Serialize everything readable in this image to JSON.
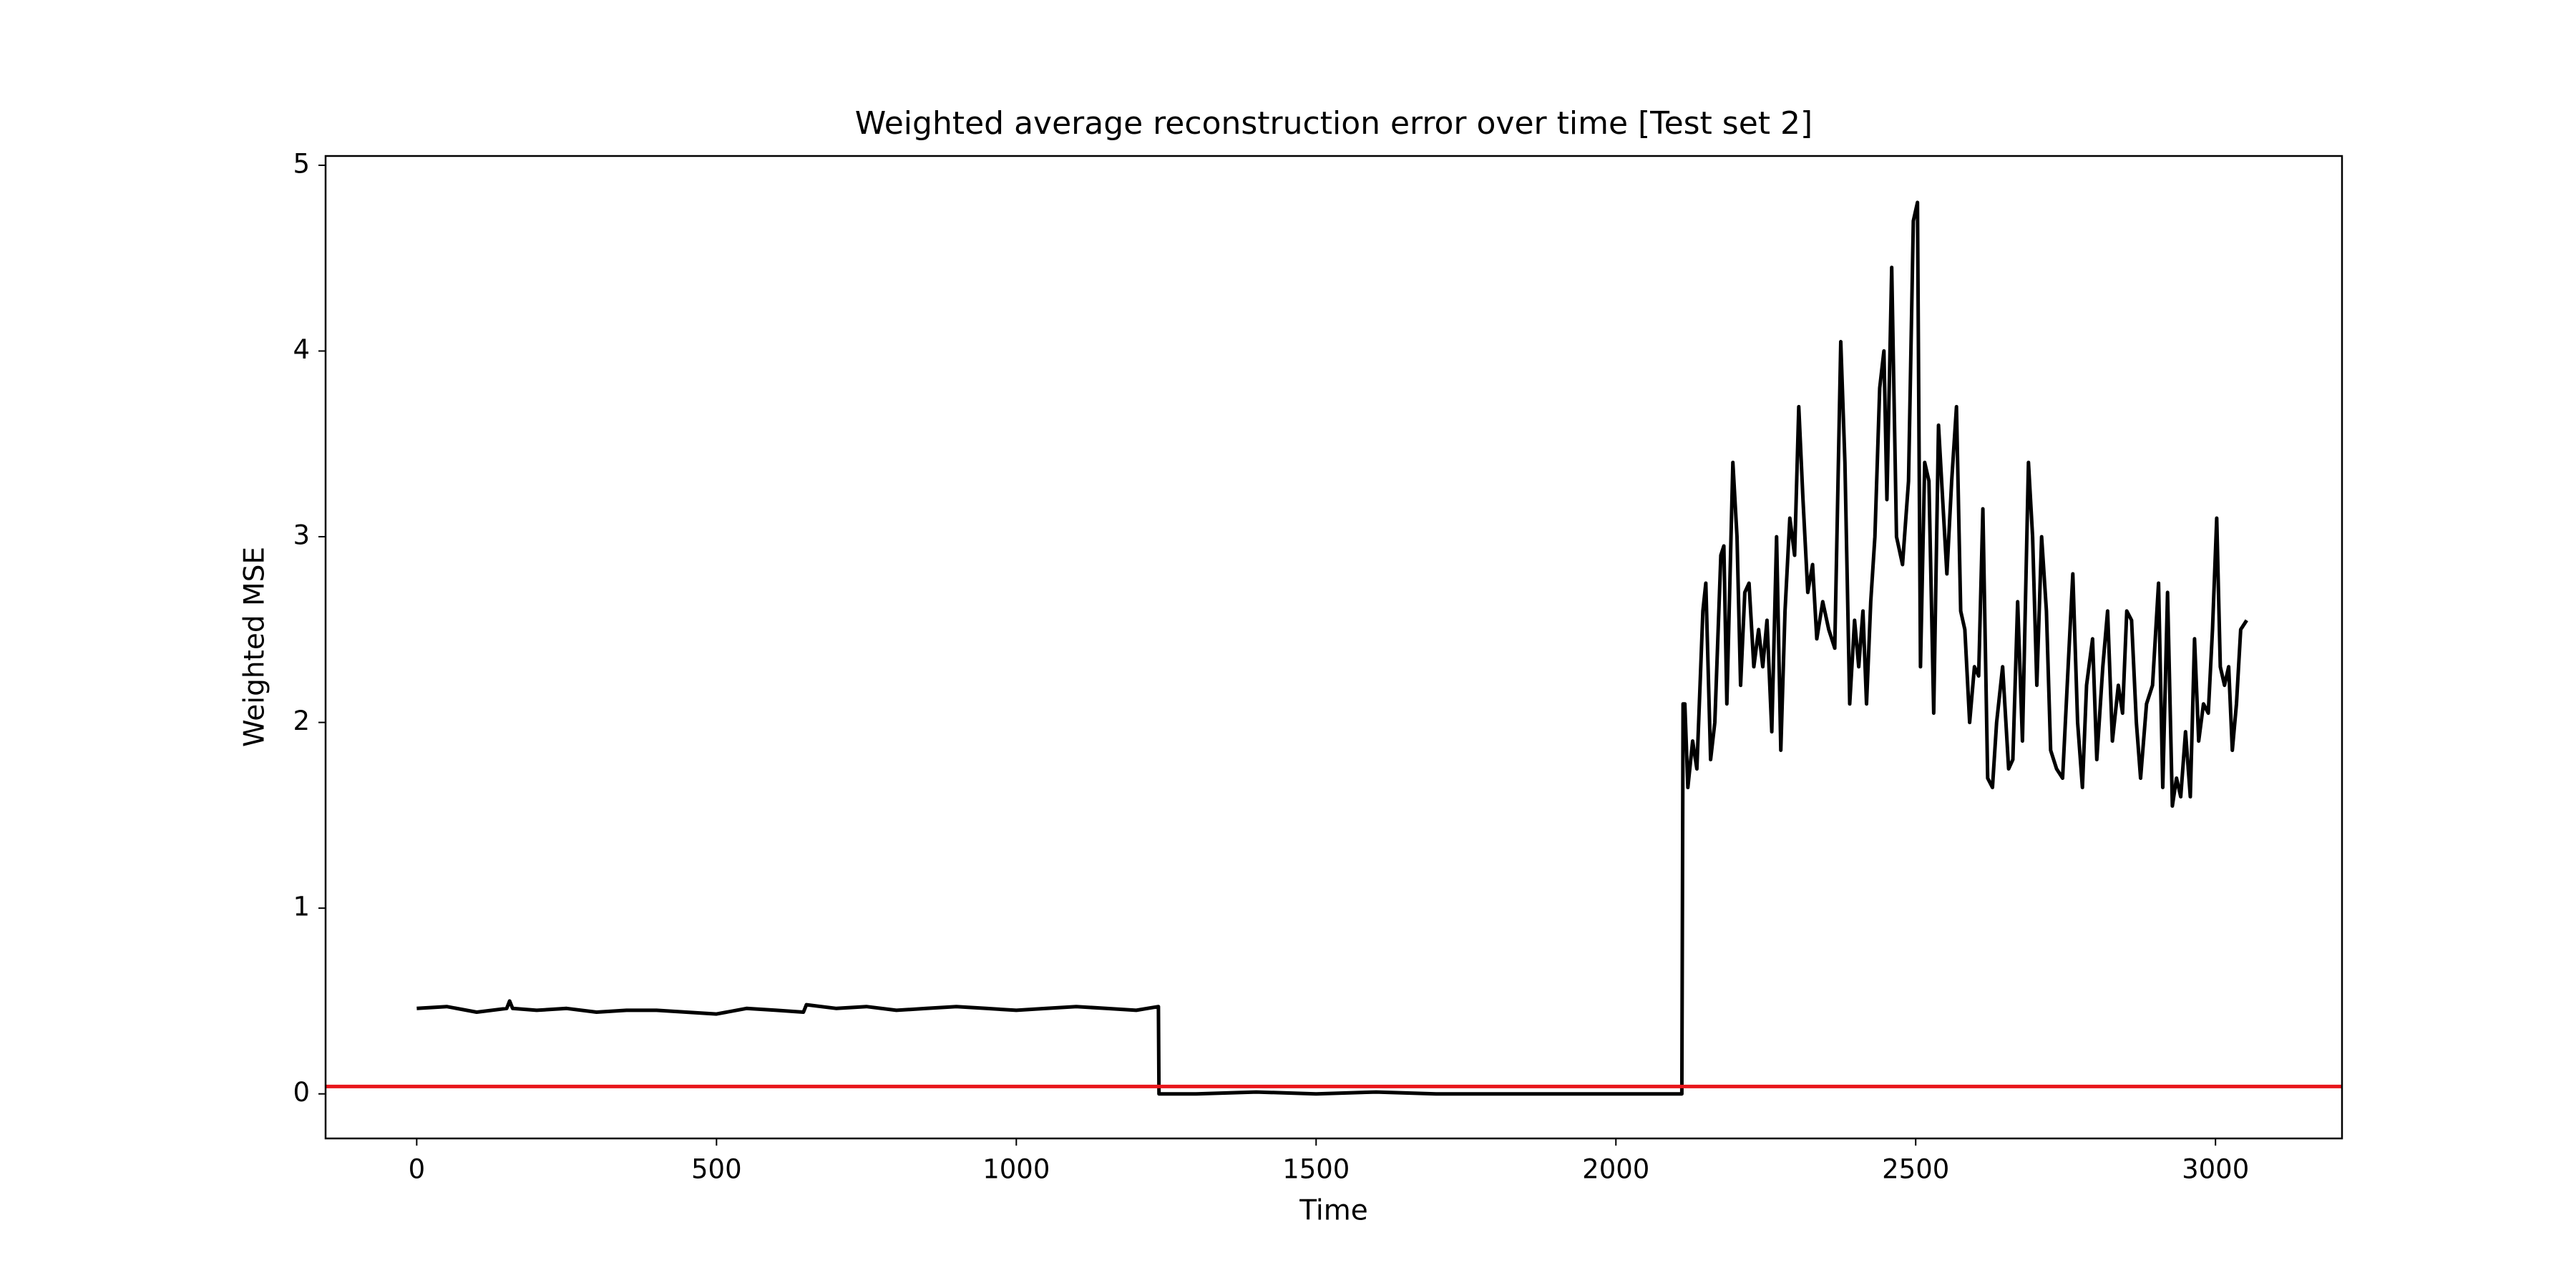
{
  "chart_data": {
    "type": "line",
    "title": "Weighted average reconstruction error over time [Test set 2]",
    "x_label": "Time",
    "y_label": "Weighted MSE",
    "xlim": [
      -152,
      3211
    ],
    "ylim": [
      -0.24,
      5.05
    ],
    "xticks": [
      0,
      500,
      1000,
      1500,
      2000,
      2500,
      3000
    ],
    "yticks": [
      0,
      1,
      2,
      3,
      4,
      5
    ],
    "grid": false,
    "hlines": [
      {
        "value": 0.04,
        "color": "#e8161b"
      }
    ],
    "x": [
      0,
      50,
      100,
      150,
      155,
      160,
      200,
      250,
      300,
      350,
      400,
      450,
      500,
      550,
      600,
      645,
      650,
      700,
      750,
      800,
      850,
      900,
      950,
      1000,
      1050,
      1100,
      1150,
      1200,
      1237,
      1238,
      1300,
      1400,
      1500,
      1600,
      1700,
      1800,
      1900,
      2000,
      2100,
      2110,
      2112,
      2115,
      2120,
      2128,
      2135,
      2145,
      2150,
      2158,
      2165,
      2175,
      2180,
      2185,
      2195,
      2202,
      2208,
      2215,
      2222,
      2230,
      2238,
      2245,
      2252,
      2260,
      2268,
      2275,
      2282,
      2290,
      2298,
      2305,
      2312,
      2320,
      2328,
      2335,
      2345,
      2355,
      2365,
      2375,
      2382,
      2390,
      2398,
      2405,
      2412,
      2418,
      2425,
      2432,
      2440,
      2447,
      2452,
      2460,
      2468,
      2478,
      2488,
      2496,
      2503,
      2508,
      2515,
      2522,
      2530,
      2538,
      2545,
      2552,
      2560,
      2568,
      2575,
      2582,
      2590,
      2598,
      2605,
      2612,
      2620,
      2628,
      2635,
      2645,
      2655,
      2662,
      2670,
      2678,
      2688,
      2695,
      2702,
      2710,
      2718,
      2725,
      2735,
      2745,
      2755,
      2762,
      2770,
      2778,
      2785,
      2795,
      2802,
      2812,
      2820,
      2828,
      2838,
      2845,
      2852,
      2860,
      2868,
      2875,
      2885,
      2895,
      2905,
      2912,
      2920,
      2928,
      2935,
      2942,
      2950,
      2958,
      2965,
      2972,
      2980,
      2988,
      2995,
      3002,
      3008,
      3015,
      3022,
      3028,
      3035,
      3042,
      3052
    ],
    "series": [
      {
        "name": "Weighted MSE",
        "color": "#000000",
        "values": [
          0.46,
          0.47,
          0.44,
          0.46,
          0.5,
          0.46,
          0.45,
          0.46,
          0.44,
          0.45,
          0.45,
          0.44,
          0.43,
          0.46,
          0.45,
          0.44,
          0.48,
          0.46,
          0.47,
          0.45,
          0.46,
          0.47,
          0.46,
          0.45,
          0.46,
          0.47,
          0.46,
          0.45,
          0.47,
          0.0,
          0.0,
          0.01,
          0.0,
          0.01,
          0.0,
          0.0,
          0.0,
          0.0,
          0.0,
          0.0,
          2.1,
          2.1,
          1.65,
          1.9,
          1.75,
          2.6,
          2.75,
          1.8,
          2.0,
          2.9,
          2.95,
          2.1,
          3.4,
          3.0,
          2.2,
          2.7,
          2.75,
          2.3,
          2.5,
          2.3,
          2.55,
          1.95,
          3.0,
          1.85,
          2.6,
          3.1,
          2.9,
          3.7,
          3.2,
          2.7,
          2.85,
          2.45,
          2.65,
          2.5,
          2.4,
          4.05,
          3.4,
          2.1,
          2.55,
          2.3,
          2.6,
          2.1,
          2.65,
          3.0,
          3.8,
          4.0,
          3.2,
          4.45,
          3.0,
          2.85,
          3.3,
          4.7,
          4.8,
          2.3,
          3.4,
          3.3,
          2.05,
          3.6,
          3.2,
          2.8,
          3.3,
          3.7,
          2.6,
          2.5,
          2.0,
          2.3,
          2.25,
          3.15,
          1.7,
          1.65,
          2.0,
          2.3,
          1.75,
          1.8,
          2.65,
          1.9,
          3.4,
          3.0,
          2.2,
          3.0,
          2.6,
          1.85,
          1.75,
          1.7,
          2.35,
          2.8,
          2.0,
          1.65,
          2.2,
          2.45,
          1.8,
          2.3,
          2.6,
          1.9,
          2.2,
          2.05,
          2.6,
          2.55,
          2.0,
          1.7,
          2.1,
          2.2,
          2.75,
          1.65,
          2.7,
          1.55,
          1.7,
          1.6,
          1.95,
          1.6,
          2.45,
          1.9,
          2.1,
          2.05,
          2.5,
          3.1,
          2.3,
          2.2,
          2.3,
          1.85,
          2.1,
          2.5,
          2.55
        ]
      }
    ]
  }
}
